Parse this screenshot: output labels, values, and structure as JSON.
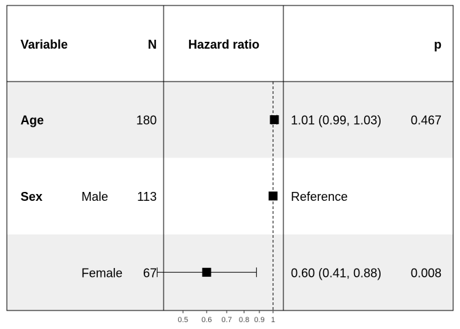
{
  "headers": {
    "variable": "Variable",
    "n": "N",
    "hazard_ratio": "Hazard ratio",
    "p": "p"
  },
  "chart_data": {
    "type": "forest",
    "x_scale": "log",
    "xlim": [
      0.44,
      1.06
    ],
    "reference_line": 1,
    "ticks": [
      0.5,
      0.6,
      0.7,
      0.8,
      0.9,
      1
    ],
    "tick_labels": [
      "0.5",
      "0.6",
      "0.7",
      "0.8",
      "0.9",
      "1"
    ],
    "rows": [
      {
        "variable": "Age",
        "level": "",
        "n": "180",
        "hr": 1.01,
        "lo": 0.99,
        "hi": 1.03,
        "estimate_text": "1.01 (0.99, 1.03)",
        "p": "0.467",
        "shaded": true
      },
      {
        "variable": "Sex",
        "level": "Male",
        "n": "113",
        "hr": 1,
        "lo": null,
        "hi": null,
        "estimate_text": "Reference",
        "p": "",
        "shaded": false
      },
      {
        "variable": "",
        "level": "Female",
        "n": "67",
        "hr": 0.6,
        "lo": 0.41,
        "hi": 0.88,
        "estimate_text": "0.60 (0.41, 0.88)",
        "p": "0.008",
        "shaded": true
      }
    ]
  }
}
